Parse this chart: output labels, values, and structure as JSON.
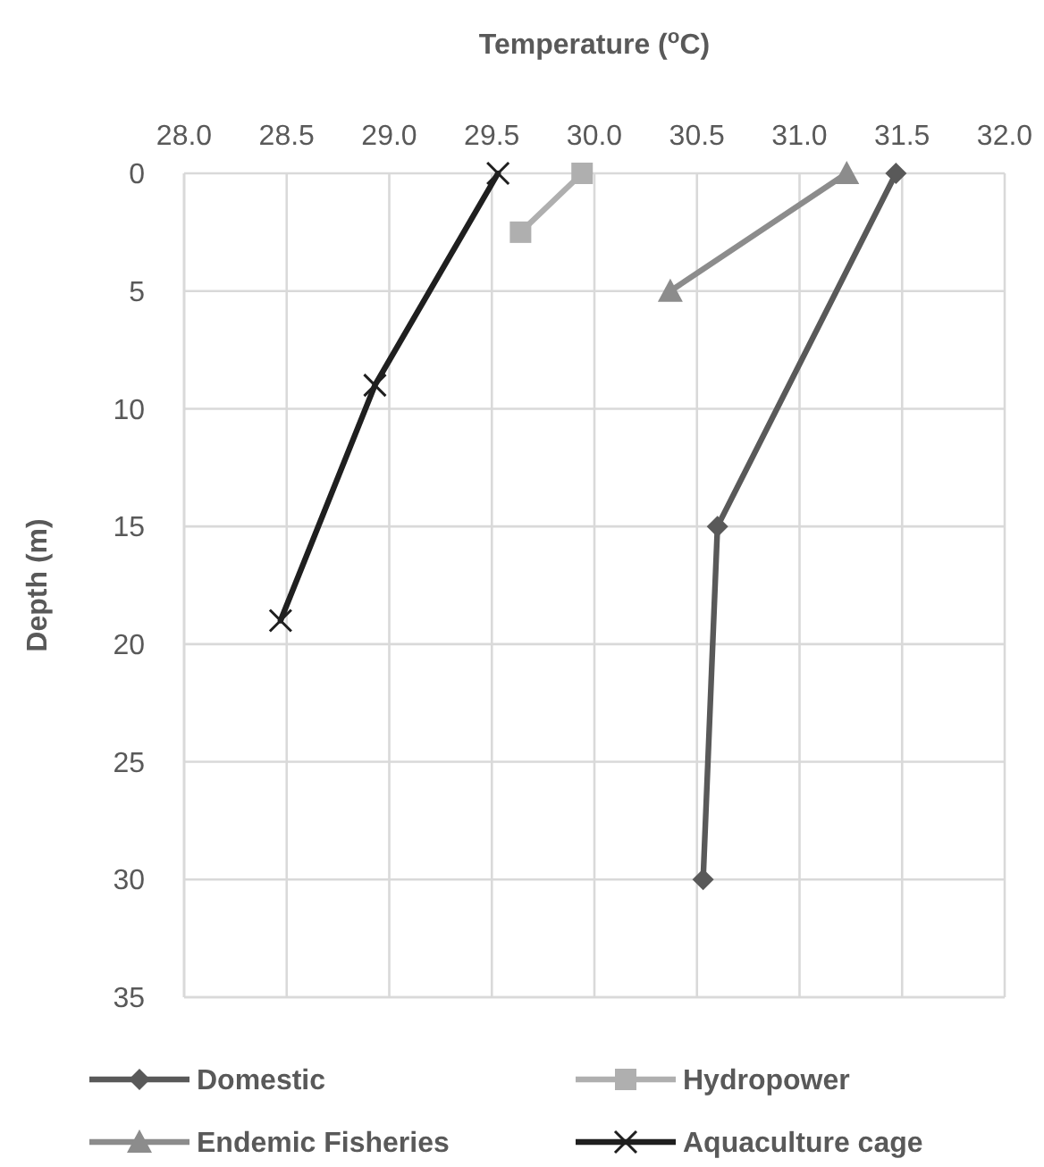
{
  "chart_data": {
    "type": "line",
    "xlabel": "Temperature ($^{o}$C)",
    "ylabel": "Depth (m)",
    "xlim": [
      28,
      32
    ],
    "xticks": [
      {
        "value": 28,
        "label": "28.0"
      },
      {
        "value": 28.5,
        "label": "28.5"
      },
      {
        "value": 29,
        "label": "29.0"
      },
      {
        "value": 29.5,
        "label": "29.5"
      },
      {
        "value": 30,
        "label": "30.0"
      },
      {
        "value": 30.5,
        "label": "30.5"
      },
      {
        "value": 31,
        "label": "31.0"
      },
      {
        "value": 31.5,
        "label": "31.5"
      },
      {
        "value": 32,
        "label": "32.0"
      }
    ],
    "ylim": [
      35,
      0
    ],
    "yticks": [
      0,
      5,
      10,
      15,
      20,
      25,
      30,
      35
    ],
    "grid": true,
    "legend": "bottom",
    "line_style": "solid",
    "series": [
      {
        "name": "Domestic",
        "color": "#595959",
        "marker": "diamond",
        "x": [
          31.47,
          30.6,
          30.53
        ],
        "values": [
          0,
          15,
          30
        ]
      },
      {
        "name": "Hydropower",
        "color": "#afafaf",
        "marker": "square",
        "x": [
          29.94,
          29.64
        ],
        "values": [
          0,
          2.5
        ]
      },
      {
        "name": "Endemic Fisheries",
        "color": "#8c8c8c",
        "marker": "triangle",
        "x": [
          31.23,
          30.37
        ],
        "values": [
          0,
          5
        ]
      },
      {
        "name": "Aquaculture cage",
        "color": "#1f1f1f",
        "marker": "cross",
        "x": [
          29.53,
          28.93,
          28.47
        ],
        "values": [
          0,
          9,
          19
        ]
      }
    ]
  }
}
